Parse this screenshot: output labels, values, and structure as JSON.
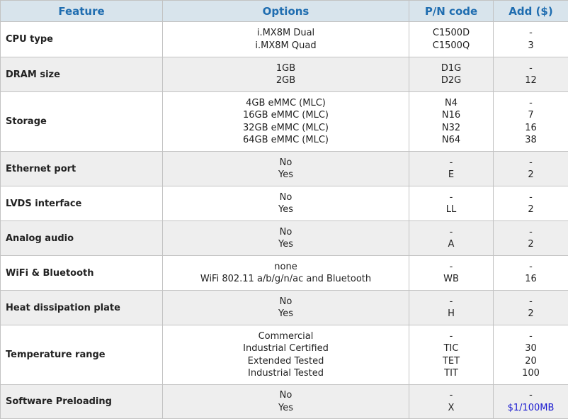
{
  "headers": {
    "feature": "Feature",
    "options": "Options",
    "pn": "P/N code",
    "add": "Add ($)"
  },
  "rows": [
    {
      "feature": "CPU type",
      "options": [
        "i.MX8M Dual",
        "i.MX8M Quad"
      ],
      "pn": [
        "C1500D",
        "C1500Q"
      ],
      "add": [
        "-",
        "3"
      ]
    },
    {
      "feature": "DRAM size",
      "options": [
        "1GB",
        "2GB"
      ],
      "pn": [
        "D1G",
        "D2G"
      ],
      "add": [
        "-",
        "12"
      ]
    },
    {
      "feature": "Storage",
      "options": [
        "4GB eMMC (MLC)",
        "16GB eMMC (MLC)",
        "32GB eMMC (MLC)",
        "64GB eMMC (MLC)"
      ],
      "pn": [
        "N4",
        "N16",
        "N32",
        "N64"
      ],
      "add": [
        "-",
        "7",
        "16",
        "38"
      ]
    },
    {
      "feature": "Ethernet port",
      "options": [
        "No",
        "Yes"
      ],
      "pn": [
        "-",
        "E"
      ],
      "add": [
        "-",
        "2"
      ]
    },
    {
      "feature": "LVDS interface",
      "options": [
        "No",
        "Yes"
      ],
      "pn": [
        "-",
        "LL"
      ],
      "add": [
        "-",
        "2"
      ]
    },
    {
      "feature": "Analog audio",
      "options": [
        "No",
        "Yes"
      ],
      "pn": [
        "-",
        "A"
      ],
      "add": [
        "-",
        "2"
      ]
    },
    {
      "feature": "WiFi & Bluetooth",
      "options": [
        "none",
        "WiFi 802.11 a/b/g/n/ac and Bluetooth"
      ],
      "pn": [
        "-",
        "WB"
      ],
      "add": [
        "-",
        "16"
      ]
    },
    {
      "feature": "Heat dissipation plate",
      "options": [
        "No",
        "Yes"
      ],
      "pn": [
        "-",
        "H"
      ],
      "add": [
        "-",
        "2"
      ]
    },
    {
      "feature": "Temperature range",
      "options": [
        "Commercial",
        "Industrial Certified",
        "Extended Tested",
        "Industrial Tested"
      ],
      "pn": [
        "-",
        "TIC",
        "TET",
        "TIT"
      ],
      "add": [
        "-",
        "30",
        "20",
        "100"
      ]
    },
    {
      "feature": "Software Preloading",
      "options": [
        "No",
        "Yes"
      ],
      "pn": [
        "-",
        "X"
      ],
      "add": [
        "-",
        "$1/100MB"
      ]
    }
  ],
  "colors": {
    "header_bg": "#d8e4ec",
    "header_text": "#1f6db0",
    "row_alt_bg": "#eeeeee",
    "border": "#c3c3c3",
    "price_link": "#1a1ad0"
  }
}
